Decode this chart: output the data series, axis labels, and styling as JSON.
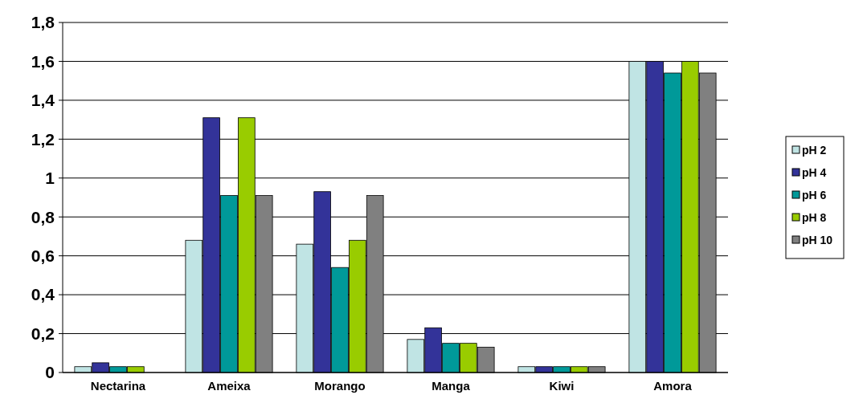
{
  "chart_data": {
    "type": "bar",
    "categories": [
      "Nectarina",
      "Ameixa",
      "Morango",
      "Manga",
      "Kiwi",
      "Amora"
    ],
    "series": [
      {
        "name": "pH 2",
        "color": "#c0e4e4",
        "values": [
          0.03,
          0.68,
          0.66,
          0.17,
          0.03,
          1.6
        ]
      },
      {
        "name": "pH 4",
        "color": "#333399",
        "values": [
          0.05,
          1.31,
          0.93,
          0.23,
          0.03,
          1.6
        ]
      },
      {
        "name": "pH 6",
        "color": "#009999",
        "values": [
          0.03,
          0.91,
          0.54,
          0.15,
          0.03,
          1.54
        ]
      },
      {
        "name": "pH 8",
        "color": "#99cc00",
        "values": [
          0.03,
          1.31,
          0.68,
          0.15,
          0.03,
          1.6
        ]
      },
      {
        "name": "pH 10",
        "color": "#808080",
        "values": [
          0,
          0.91,
          0.91,
          0.13,
          0.03,
          1.54
        ]
      }
    ],
    "ylim": [
      0,
      1.8
    ],
    "yticks": [
      0,
      {
        "value": 0.2,
        "label": "0,2"
      },
      {
        "value": 0.4,
        "label": "0,4"
      },
      {
        "value": 0.6,
        "label": "0,6"
      },
      {
        "value": 0.8,
        "label": "0,8"
      },
      1,
      {
        "value": 1.2,
        "label": "1,2"
      },
      {
        "value": 1.4,
        "label": "1,4"
      },
      {
        "value": 1.6,
        "label": "1,6"
      },
      {
        "value": 1.8,
        "label": "1,8"
      }
    ],
    "grid": "y",
    "legend": "right"
  }
}
